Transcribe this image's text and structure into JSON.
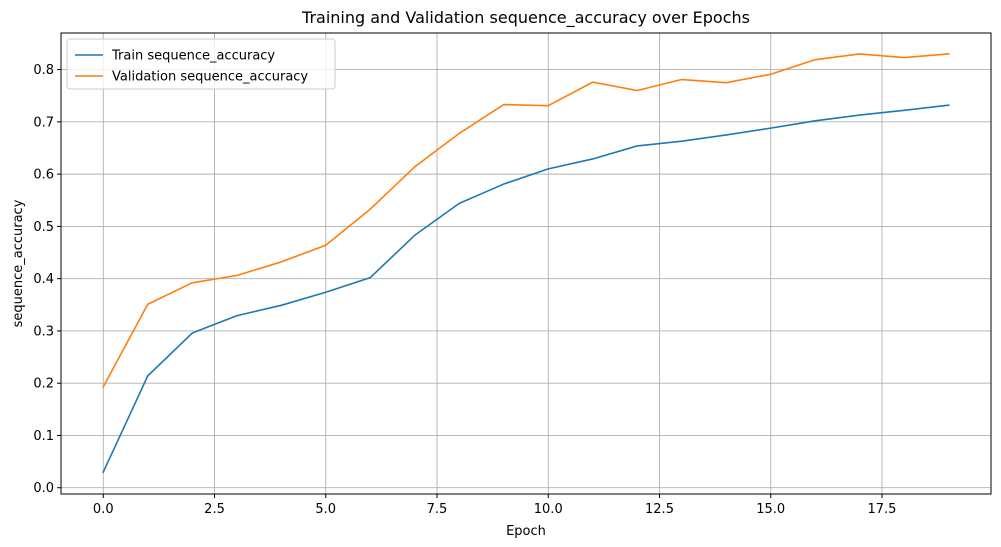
{
  "chart_data": {
    "type": "line",
    "title": "Training and Validation sequence_accuracy over Epochs",
    "xlabel": "Epoch",
    "ylabel": "sequence_accuracy",
    "xlim": [
      -0.95,
      19.95
    ],
    "ylim": [
      -0.012,
      0.87
    ],
    "xticks": [
      0,
      2.5,
      5,
      7.5,
      10,
      12.5,
      15,
      17.5
    ],
    "xtick_labels": [
      "0.0",
      "2.5",
      "5.0",
      "7.5",
      "10.0",
      "12.5",
      "15.0",
      "17.5"
    ],
    "yticks": [
      0,
      0.1,
      0.2,
      0.3,
      0.4,
      0.5,
      0.6,
      0.7,
      0.8
    ],
    "ytick_labels": [
      "0.0",
      "0.1",
      "0.2",
      "0.3",
      "0.4",
      "0.5",
      "0.6",
      "0.7",
      "0.8"
    ],
    "grid": true,
    "legend_position": "top-left",
    "x": [
      0,
      1,
      2,
      3,
      4,
      5,
      6,
      7,
      8,
      9,
      10,
      11,
      12,
      13,
      14,
      15,
      16,
      17,
      18,
      19
    ],
    "series": [
      {
        "name": "Train sequence_accuracy",
        "color": "#1f77b4",
        "values": [
          0.03,
          0.214,
          0.296,
          0.329,
          0.349,
          0.374,
          0.402,
          0.483,
          0.544,
          0.581,
          0.61,
          0.629,
          0.654,
          0.663,
          0.675,
          0.688,
          0.702,
          0.713,
          0.722,
          0.732
        ]
      },
      {
        "name": "Validation sequence_accuracy",
        "color": "#ff7f0e",
        "values": [
          0.193,
          0.351,
          0.392,
          0.406,
          0.432,
          0.464,
          0.533,
          0.614,
          0.678,
          0.733,
          0.731,
          0.776,
          0.76,
          0.781,
          0.775,
          0.791,
          0.819,
          0.83,
          0.823,
          0.83
        ]
      }
    ]
  }
}
